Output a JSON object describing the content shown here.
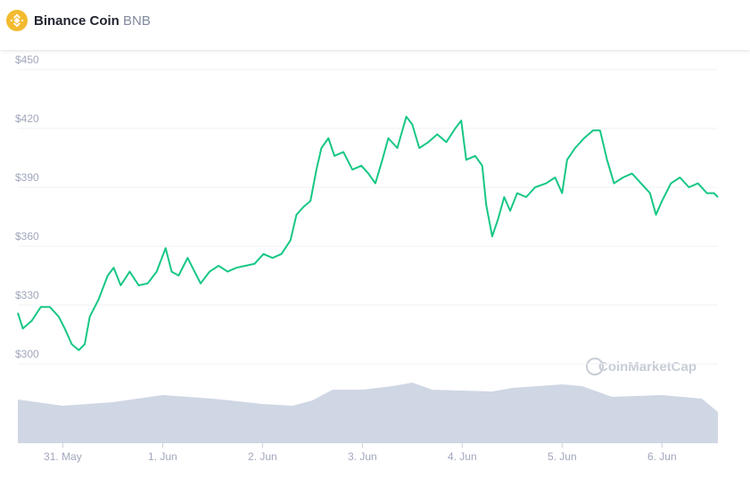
{
  "header": {
    "name": "Binance Coin",
    "symbol": "BNB"
  },
  "chart_data": {
    "type": "line",
    "watermark": "CoinMarketCap",
    "x": [
      -0.45,
      -0.4,
      -0.31,
      -0.22,
      -0.13,
      -0.04,
      0.02,
      0.09,
      0.16,
      0.22,
      0.27,
      0.36,
      0.45,
      0.51,
      0.58,
      0.67,
      0.76,
      0.85,
      0.94,
      1.03,
      1.09,
      1.16,
      1.25,
      1.32,
      1.38,
      1.47,
      1.56,
      1.65,
      1.74,
      1.83,
      1.92,
      2.01,
      2.1,
      2.19,
      2.28,
      2.34,
      2.41,
      2.48,
      2.54,
      2.59,
      2.66,
      2.72,
      2.81,
      2.9,
      2.99,
      3.06,
      3.13,
      3.2,
      3.26,
      3.35,
      3.44,
      3.5,
      3.57,
      3.66,
      3.75,
      3.84,
      3.93,
      3.99,
      4.04,
      4.13,
      4.2,
      4.24,
      4.3,
      4.36,
      4.42,
      4.48,
      4.55,
      4.64,
      4.73,
      4.84,
      4.93,
      5.0,
      5.05,
      5.13,
      5.22,
      5.31,
      5.38,
      5.45,
      5.52,
      5.61,
      5.7,
      5.79,
      5.88,
      5.94,
      6.0,
      6.09,
      6.18,
      6.27,
      6.36,
      6.45,
      6.52,
      6.56
    ],
    "series": [
      {
        "color": "#16c784",
        "values": [
          326,
          318,
          322,
          329,
          329,
          324,
          318,
          310,
          307,
          310,
          324,
          333,
          345,
          349,
          340,
          347,
          340,
          341,
          347,
          359,
          347,
          345,
          354,
          347,
          341,
          347,
          350,
          347,
          349,
          350,
          351,
          356,
          354,
          356,
          363,
          376,
          380,
          383,
          399,
          410,
          415,
          406,
          408,
          399,
          401,
          397,
          392,
          404,
          415,
          410,
          426,
          422,
          410,
          413,
          417,
          413,
          420,
          424,
          404,
          406,
          401,
          381,
          365,
          374,
          385,
          378,
          387,
          385,
          390,
          392,
          395,
          387,
          404,
          410,
          415,
          419,
          419,
          404,
          392,
          395,
          397,
          392,
          387,
          376,
          383,
          392,
          395,
          390,
          392,
          387,
          387,
          385
        ]
      }
    ],
    "xlim": [
      -0.45,
      6.56
    ],
    "xticks": [
      {
        "value": 0,
        "label": "31. May"
      },
      {
        "value": 1,
        "label": "1. Jun"
      },
      {
        "value": 2,
        "label": "2. Jun"
      },
      {
        "value": 3,
        "label": "3. Jun"
      },
      {
        "value": 4,
        "label": "4. Jun"
      },
      {
        "value": 5,
        "label": "5. Jun"
      },
      {
        "value": 6,
        "label": "6. Jun"
      }
    ],
    "ylim": [
      300,
      450
    ],
    "yticks": [
      {
        "value": 300,
        "label": "$300"
      },
      {
        "value": 330,
        "label": "$330"
      },
      {
        "value": 360,
        "label": "$360"
      },
      {
        "value": 390,
        "label": "$390"
      },
      {
        "value": 420,
        "label": "$420"
      },
      {
        "value": 450,
        "label": "$450"
      }
    ],
    "grid": true,
    "volume": {
      "color": "#cfd6e4",
      "ylim": [
        0,
        100
      ],
      "x": [
        -0.45,
        0,
        0.5,
        1,
        1.5,
        2,
        2.3,
        2.5,
        2.7,
        3,
        3.3,
        3.5,
        3.7,
        4,
        4.3,
        4.5,
        5,
        5.2,
        5.5,
        6,
        6.4,
        6.56
      ],
      "values": [
        49,
        42,
        46,
        54,
        50,
        44,
        42,
        48,
        60,
        60,
        64,
        68,
        60,
        59,
        58,
        62,
        66,
        64,
        52,
        54,
        50,
        35
      ]
    }
  }
}
